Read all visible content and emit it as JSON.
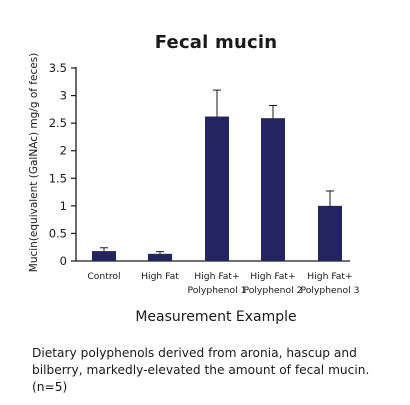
{
  "chart_data": {
    "type": "bar",
    "title": "Fecal mucin",
    "ylabel": "Mucin(equivalent (GalNAc) mg/g of feces)",
    "xlabel": "",
    "categories": [
      [
        "Control"
      ],
      [
        "High Fat"
      ],
      [
        "High Fat+",
        "Polyphenol 1"
      ],
      [
        "High Fat+",
        "Polyphenol 2"
      ],
      [
        "High Fat+",
        "Polyphenol 3"
      ]
    ],
    "values": [
      0.18,
      0.13,
      2.62,
      2.59,
      1.0
    ],
    "error_bars": [
      0.06,
      0.04,
      0.48,
      0.23,
      0.27
    ],
    "ylim": [
      0,
      3.5
    ],
    "yticks": [
      "0",
      "0.5",
      "1",
      "1.5",
      "2",
      "2.5",
      "3",
      "3.5"
    ],
    "grid": false,
    "bar_color": "#24245e"
  },
  "caption": "Measurement Example",
  "description": "Dietary polyphenols derived from aronia, hascup and bilberry, markedly-elevated the amount of fecal mucin. (n=5)"
}
